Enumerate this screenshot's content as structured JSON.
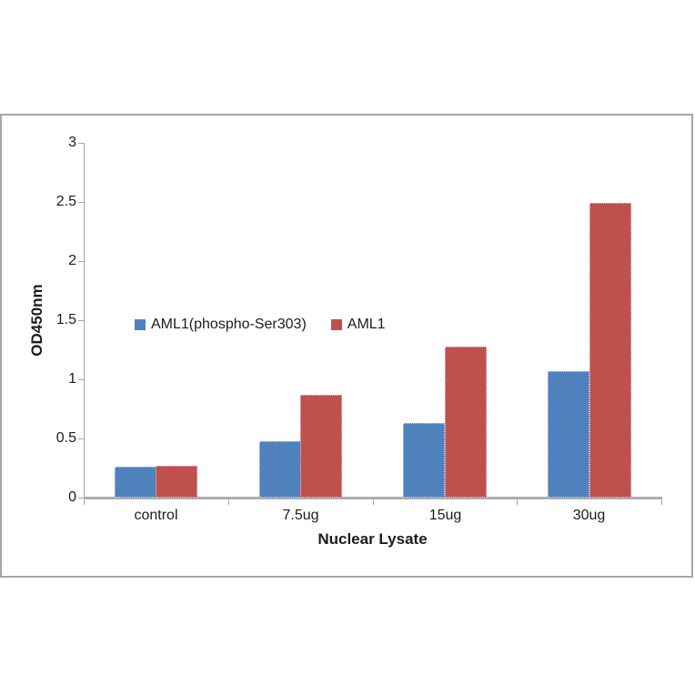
{
  "chart_data": {
    "type": "bar",
    "title": "",
    "xlabel": "Nuclear Lysate",
    "ylabel": "OD450nm",
    "categories": [
      "control",
      "7.5ug",
      "15ug",
      "30ug"
    ],
    "series": [
      {
        "name": "AML1(phospho-Ser303)",
        "color": "#4f81bd",
        "values": [
          0.26,
          0.48,
          0.63,
          1.07
        ]
      },
      {
        "name": "AML1",
        "color": "#c0504d",
        "values": [
          0.27,
          0.87,
          1.28,
          2.49
        ]
      }
    ],
    "ylim": [
      0,
      3
    ],
    "ytick_values": [
      0,
      0.5,
      1,
      1.5,
      2,
      2.5,
      3
    ],
    "ytick_labels": [
      "0",
      "0.5",
      "1",
      "1.5",
      "2",
      "2.5",
      "3"
    ],
    "grid": false,
    "legend_position": "inside-upper-left"
  },
  "colors": {
    "axis": "#a6a6a6",
    "frame": "#a6a6a6",
    "text": "#1c1c1c",
    "background": "#ffffff"
  }
}
